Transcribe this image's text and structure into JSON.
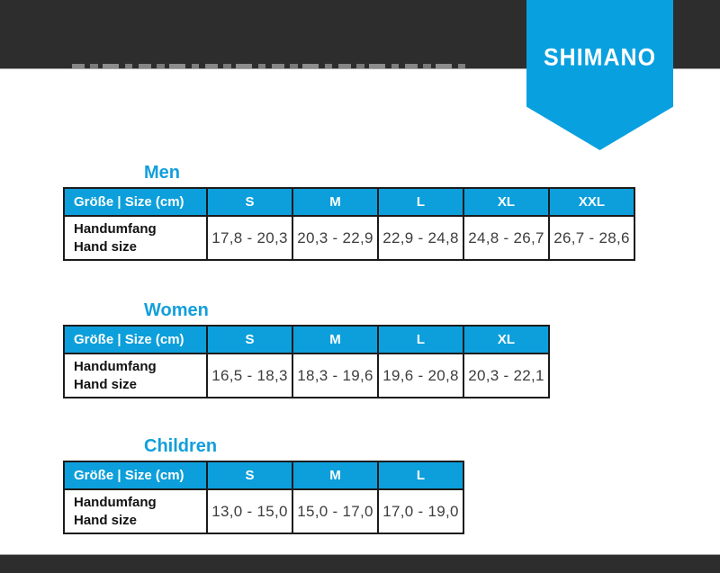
{
  "colors": {
    "accent_blue": "#0c9fdb",
    "ribbon_blue": "#09a0e0",
    "banner_dark": "#2d2d2d",
    "border_dark": "#1b1b1b",
    "value_text": "#3d3d3d",
    "title_blue": "#129fdb"
  },
  "logo": {
    "text": "SHIMANO"
  },
  "tables": [
    {
      "title": "Men",
      "header_label": "Größe | Size (cm)",
      "sizes": [
        "S",
        "M",
        "L",
        "XL",
        "XXL"
      ],
      "row_label_de": "Handumfang",
      "row_label_en": "Hand size",
      "values": [
        "17,8 - 20,3",
        "20,3 - 22,9",
        "22,9 - 24,8",
        "24,8 - 26,7",
        "26,7 - 28,6"
      ]
    },
    {
      "title": "Women",
      "header_label": "Größe | Size (cm)",
      "sizes": [
        "S",
        "M",
        "L",
        "XL"
      ],
      "row_label_de": "Handumfang",
      "row_label_en": "Hand size",
      "values": [
        "16,5 - 18,3",
        "18,3 - 19,6",
        "19,6 - 20,8",
        "20,3 - 22,1"
      ]
    },
    {
      "title": "Children",
      "header_label": "Größe | Size (cm)",
      "sizes": [
        "S",
        "M",
        "L"
      ],
      "row_label_de": "Handumfang",
      "row_label_en": "Hand size",
      "values": [
        "13,0 - 15,0",
        "15,0 - 17,0",
        "17,0 - 19,0"
      ]
    }
  ]
}
